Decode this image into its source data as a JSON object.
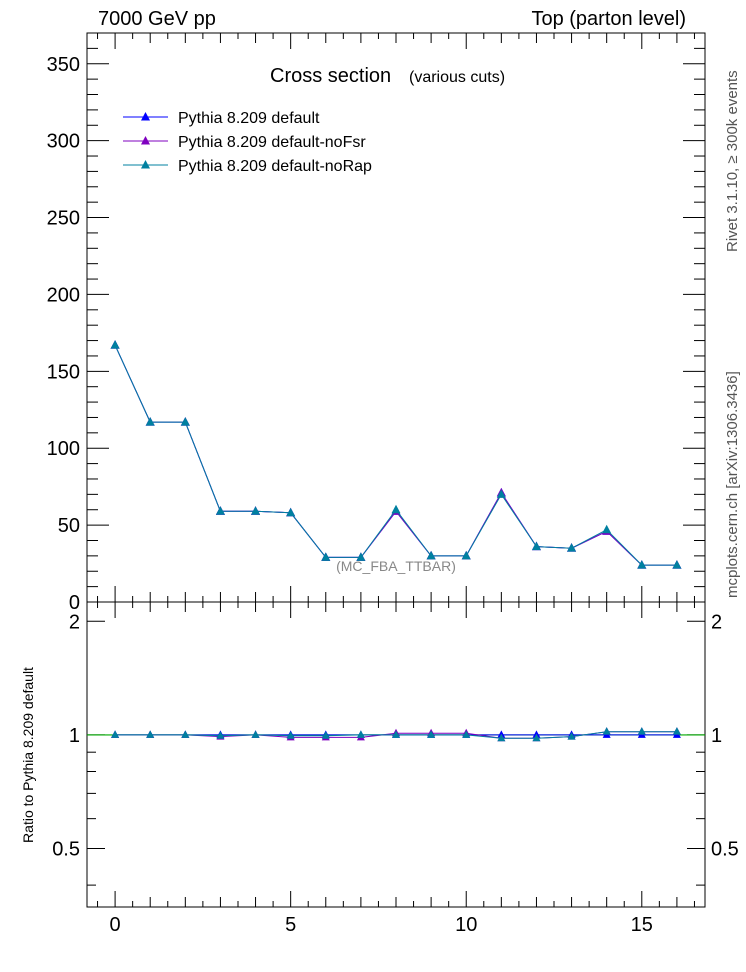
{
  "header": {
    "left": "7000 GeV pp",
    "right": "Top (parton level)"
  },
  "side_labels": {
    "rivet": "Rivet 3.1.10, ≥ 300k events",
    "mcplots": "mcplots.cern.ch [arXiv:1306.3436]"
  },
  "colors": {
    "default": "#0000ff",
    "noFsr": "#7f00bf",
    "noRap": "#0080a0",
    "ref_line": "#00aa00"
  },
  "chart_data": [
    {
      "type": "line",
      "title": "Cross section",
      "subtitle": "(various cuts)",
      "analysis_label": "(MC_FBA_TTBAR)",
      "xlabel": "",
      "ylabel": "",
      "xlim": [
        -0.8,
        16.8
      ],
      "ylim": [
        0,
        370
      ],
      "x_ticks": [
        0,
        5,
        10,
        15
      ],
      "y_ticks": [
        0,
        50,
        100,
        150,
        200,
        250,
        300,
        350
      ],
      "legend_position": "top-left",
      "x": [
        0,
        1,
        2,
        3,
        4,
        5,
        6,
        7,
        8,
        9,
        10,
        11,
        12,
        13,
        14,
        15,
        16
      ],
      "series": [
        {
          "name": "Pythia 8.209 default",
          "key": "default",
          "values": [
            167,
            117,
            117,
            59,
            59,
            58,
            29,
            29,
            59,
            30,
            30,
            71,
            36,
            35,
            46,
            24,
            24
          ]
        },
        {
          "name": "Pythia 8.209 default-noFsr",
          "key": "noFsr",
          "values": [
            167,
            117,
            117,
            59,
            59,
            58,
            29,
            29,
            59,
            30,
            30,
            71,
            36,
            35,
            46,
            24,
            24
          ]
        },
        {
          "name": "Pythia 8.209 default-noRap",
          "key": "noRap",
          "values": [
            167,
            117,
            117,
            59,
            59,
            58,
            29,
            29,
            60,
            30,
            30,
            70,
            36,
            35,
            47,
            24,
            24
          ]
        }
      ]
    },
    {
      "type": "line",
      "ylabel": "Ratio to Pythia 8.209 default",
      "xlim": [
        -0.8,
        16.8
      ],
      "ylim": [
        0.35,
        2.25
      ],
      "x_ticks": [
        0,
        5,
        10,
        15
      ],
      "y_ticks": [
        0.5,
        1,
        2
      ],
      "reference_value": 1,
      "x": [
        0,
        1,
        2,
        3,
        4,
        5,
        6,
        7,
        8,
        9,
        10,
        11,
        12,
        13,
        14,
        15,
        16
      ],
      "series": [
        {
          "name": "Pythia 8.209 default",
          "key": "default",
          "values": [
            1,
            1,
            1,
            1,
            1,
            1,
            1,
            1,
            1,
            1,
            1,
            1,
            1,
            1,
            1,
            1,
            1
          ]
        },
        {
          "name": "Pythia 8.209 default-noFsr",
          "key": "noFsr",
          "values": [
            1.0,
            1.0,
            1.0,
            0.99,
            1.0,
            0.985,
            0.985,
            0.985,
            1.01,
            1.01,
            1.01,
            0.98,
            0.98,
            0.99,
            1.02,
            1.02,
            1.02
          ]
        },
        {
          "name": "Pythia 8.209 default-noRap",
          "key": "noRap",
          "values": [
            1.0,
            1.0,
            1.0,
            0.995,
            1.0,
            0.995,
            0.995,
            1.0,
            1.0,
            1.0,
            1.0,
            0.98,
            0.98,
            0.99,
            1.02,
            1.02,
            1.02
          ]
        }
      ]
    }
  ]
}
